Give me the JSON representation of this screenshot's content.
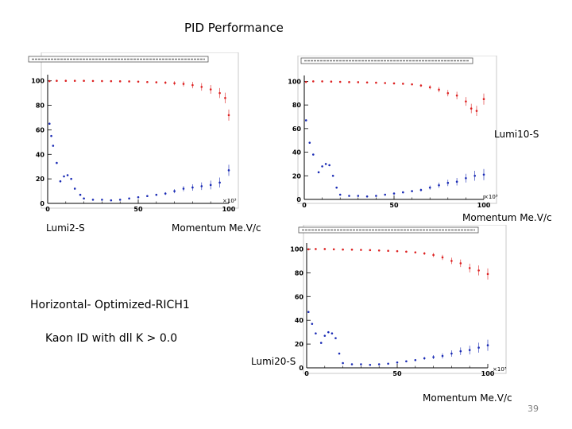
{
  "title": "PID Performance",
  "page_number": "39",
  "notes": {
    "config": "Horizontal- Optimized-RICH1",
    "criterion": "Kaon ID with dll K > 0.0"
  },
  "colors": {
    "efficiency": "#dd2222",
    "misid": "#1a2bb5",
    "frame": "#c8c8c8"
  },
  "chart_data": [
    {
      "type": "scatter",
      "name": "Lumi2-S",
      "label": "Lumi2-S",
      "xlabel": "Momentum Me.V/c",
      "x_scale_label": "×10³",
      "xlim": [
        0,
        100
      ],
      "ylim": [
        0,
        105
      ],
      "xticks": [
        0,
        50,
        100
      ],
      "yticks": [
        0,
        20,
        40,
        60,
        80,
        100
      ],
      "series": [
        {
          "name": "K efficiency",
          "x": [
            1,
            5,
            10,
            15,
            20,
            25,
            30,
            35,
            40,
            45,
            50,
            55,
            60,
            65,
            70,
            75,
            80,
            85,
            90,
            95,
            98,
            100
          ],
          "y": [
            99.8,
            100,
            100,
            100,
            100,
            99.9,
            99.8,
            99.7,
            99.6,
            99.5,
            99.3,
            99,
            98.8,
            98.5,
            98,
            97.5,
            96.5,
            95,
            93,
            90,
            86,
            72
          ]
        },
        {
          "name": "pi misID",
          "x": [
            1,
            2,
            3,
            5,
            7,
            9,
            11,
            13,
            15,
            18,
            20,
            25,
            30,
            35,
            40,
            45,
            50,
            55,
            60,
            65,
            70,
            75,
            80,
            85,
            90,
            95,
            100
          ],
          "y": [
            65,
            55,
            47,
            33,
            18,
            22,
            23,
            20,
            12,
            7,
            4,
            3,
            3,
            2.5,
            3,
            4,
            5,
            6,
            7,
            8,
            10,
            12,
            13,
            14,
            15,
            17,
            27
          ]
        }
      ]
    },
    {
      "type": "scatter",
      "name": "Lumi10-S",
      "label": "Lumi10-S",
      "xlabel": "Momentum  Me.V/c",
      "x_scale_label": "×10³",
      "xlim": [
        0,
        100
      ],
      "ylim": [
        0,
        105
      ],
      "xticks": [
        0,
        50,
        100
      ],
      "yticks": [
        0,
        20,
        40,
        60,
        80,
        100
      ],
      "series": [
        {
          "name": "K efficiency",
          "x": [
            1,
            5,
            10,
            15,
            20,
            25,
            30,
            35,
            40,
            45,
            50,
            55,
            60,
            65,
            70,
            75,
            80,
            85,
            90,
            93,
            96,
            100
          ],
          "y": [
            99.5,
            100,
            100,
            99.8,
            99.6,
            99.4,
            99.3,
            99.1,
            98.9,
            98.6,
            98.3,
            98,
            97.5,
            96.5,
            95,
            93,
            90,
            88,
            83,
            77,
            75,
            85
          ]
        },
        {
          "name": "pi misID",
          "x": [
            1,
            3,
            5,
            8,
            10,
            12,
            14,
            16,
            18,
            20,
            25,
            30,
            35,
            40,
            45,
            50,
            55,
            60,
            65,
            70,
            75,
            80,
            85,
            90,
            95,
            100
          ],
          "y": [
            67,
            48,
            38,
            23,
            28,
            30,
            29,
            20,
            10,
            4,
            3,
            3,
            2.5,
            3,
            4,
            5,
            6,
            7,
            8,
            10,
            12,
            14,
            15,
            18,
            20,
            21
          ]
        }
      ]
    },
    {
      "type": "scatter",
      "name": "Lumi20-S",
      "label": "Lumi20-S",
      "xlabel": "Momentum  Me.V/c",
      "x_scale_label": "×10³",
      "xlim": [
        0,
        100
      ],
      "ylim": [
        0,
        105
      ],
      "xticks": [
        0,
        50,
        100
      ],
      "yticks": [
        0,
        20,
        40,
        60,
        80,
        100
      ],
      "series": [
        {
          "name": "K efficiency",
          "x": [
            1,
            5,
            10,
            15,
            20,
            25,
            30,
            35,
            40,
            45,
            50,
            55,
            60,
            65,
            70,
            75,
            80,
            85,
            90,
            95,
            100
          ],
          "y": [
            99.8,
            100,
            100,
            99.8,
            99.6,
            99.5,
            99.3,
            99.1,
            98.8,
            98.5,
            98.2,
            97.8,
            97.2,
            96.3,
            95,
            93,
            90,
            88,
            84,
            82,
            79
          ]
        },
        {
          "name": "pi misID",
          "x": [
            1,
            3,
            5,
            8,
            10,
            12,
            14,
            16,
            18,
            20,
            25,
            30,
            35,
            40,
            45,
            50,
            55,
            60,
            65,
            70,
            75,
            80,
            85,
            90,
            95,
            100
          ],
          "y": [
            47,
            37,
            29,
            21,
            27,
            30,
            29,
            25,
            12,
            4,
            3,
            3,
            2.5,
            3,
            3.5,
            4.5,
            5.5,
            6.5,
            8,
            9,
            10,
            12,
            14,
            15,
            17,
            19
          ]
        }
      ]
    }
  ]
}
